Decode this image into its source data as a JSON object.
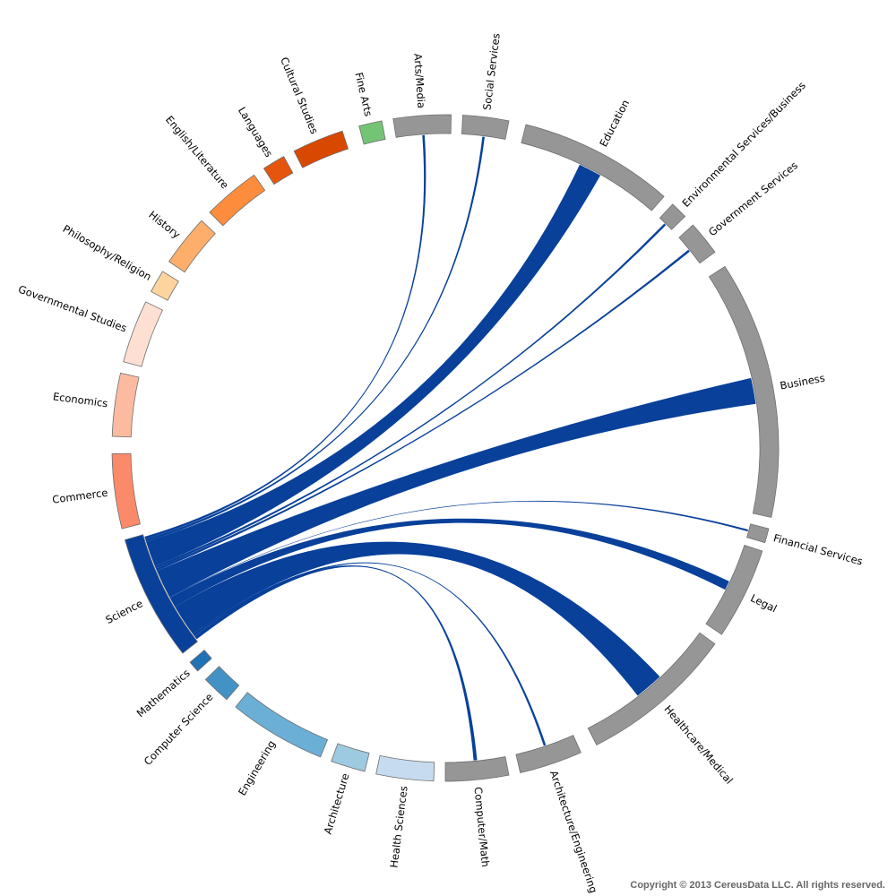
{
  "chart_data": {
    "type": "chord",
    "title": "",
    "source": "Science",
    "groups": [
      {
        "name": "Arts/Media",
        "kind": "occupation",
        "color": "#969696",
        "a0": -9,
        "a1": 1
      },
      {
        "name": "Social Services",
        "kind": "occupation",
        "color": "#969696",
        "a0": 3,
        "a1": 11
      },
      {
        "name": "Education",
        "kind": "occupation",
        "color": "#969696",
        "a0": 14,
        "a1": 41
      },
      {
        "name": "Environmental Services/Business",
        "kind": "occupation",
        "color": "#969696",
        "a0": 43,
        "a1": 46
      },
      {
        "name": "Government Services",
        "kind": "occupation",
        "color": "#969696",
        "a0": 48,
        "a1": 54
      },
      {
        "name": "Business",
        "kind": "occupation",
        "color": "#969696",
        "a0": 57,
        "a1": 102
      },
      {
        "name": "Financial Services",
        "kind": "occupation",
        "color": "#969696",
        "a0": 104,
        "a1": 106.5
      },
      {
        "name": "Legal",
        "kind": "occupation",
        "color": "#969696",
        "a0": 108,
        "a1": 124
      },
      {
        "name": "Healthcare/Medical",
        "kind": "occupation",
        "color": "#969696",
        "a0": 126,
        "a1": 153
      },
      {
        "name": "Architecture/Engineering",
        "kind": "occupation",
        "color": "#969696",
        "a0": 156,
        "a1": 167
      },
      {
        "name": "Computer/Math",
        "kind": "occupation",
        "color": "#969696",
        "a0": 169,
        "a1": 180
      },
      {
        "name": "Health Sciences",
        "kind": "major",
        "color": "#c6dbef",
        "a0": 182,
        "a1": 192
      },
      {
        "name": "Architecture",
        "kind": "major",
        "color": "#9ecae1",
        "a0": 194,
        "a1": 200
      },
      {
        "name": "Engineering",
        "kind": "major",
        "color": "#6baed6",
        "a0": 202,
        "a1": 219
      },
      {
        "name": "Computer Science",
        "kind": "major",
        "color": "#4292c6",
        "a0": 221,
        "a1": 226
      },
      {
        "name": "Mathematics",
        "kind": "major",
        "color": "#2171b5",
        "a0": 228,
        "a1": 230
      },
      {
        "name": "Science",
        "kind": "major",
        "color": "#08409a",
        "a0": 232,
        "a1": 254
      },
      {
        "name": "Commerce",
        "kind": "major",
        "color": "#fb8a6a",
        "a0": 256,
        "a1": 269
      },
      {
        "name": "Economics",
        "kind": "major",
        "color": "#fcbba1",
        "a0": 272,
        "a1": 283
      },
      {
        "name": "Governmental Studies",
        "kind": "major",
        "color": "#fee0d2",
        "a0": 285,
        "a1": 296
      },
      {
        "name": "Philosophy/Religion",
        "kind": "major",
        "color": "#fdd49e",
        "a0": 298,
        "a1": 302
      },
      {
        "name": "History",
        "kind": "major",
        "color": "#fdae6b",
        "a0": 304,
        "a1": 313
      },
      {
        "name": "English/Literature",
        "kind": "major",
        "color": "#fd8d3c",
        "a0": 315,
        "a1": 325
      },
      {
        "name": "Languages",
        "kind": "major",
        "color": "#e6550d",
        "a0": 327,
        "a1": 331
      },
      {
        "name": "Cultural Studies",
        "kind": "major",
        "color": "#d94801",
        "a0": 333,
        "a1": 342
      },
      {
        "name": "Fine Arts",
        "kind": "major",
        "color": "#74c476",
        "a0": -15,
        "a1": -11
      }
    ],
    "flows": [
      {
        "target": "Arts/Media",
        "value": 0.4
      },
      {
        "target": "Social Services",
        "value": 0.4
      },
      {
        "target": "Education",
        "value": 4.0
      },
      {
        "target": "Environmental Services/Business",
        "value": 0.4
      },
      {
        "target": "Government Services",
        "value": 0.4
      },
      {
        "target": "Business",
        "value": 4.5
      },
      {
        "target": "Financial Services",
        "value": 0.1
      },
      {
        "target": "Legal",
        "value": 1.6
      },
      {
        "target": "Healthcare/Medical",
        "value": 5.0
      },
      {
        "target": "Architecture/Engineering",
        "value": 0.4
      },
      {
        "target": "Computer/Math",
        "value": 0.6
      }
    ]
  },
  "footer": {
    "copyright": "Copyright © 2013 CereusData LLC.  All rights reserved."
  }
}
